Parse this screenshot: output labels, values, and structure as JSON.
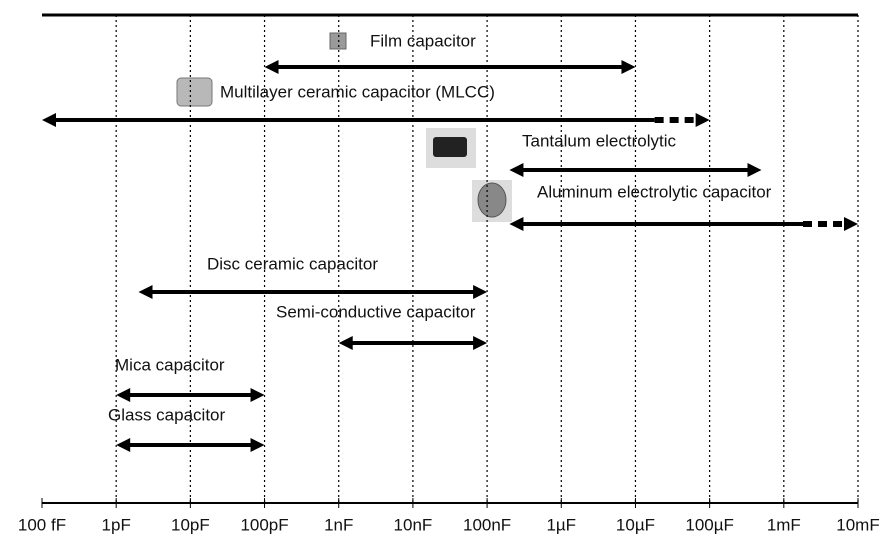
{
  "chart_data": {
    "type": "range",
    "log_x": true,
    "xlim": [
      1e-13,
      0.01
    ],
    "xticks": [
      {
        "value": 1e-13,
        "label": "100 fF"
      },
      {
        "value": 1e-12,
        "label": "1pF"
      },
      {
        "value": 1e-11,
        "label": "10pF"
      },
      {
        "value": 1e-10,
        "label": "100pF"
      },
      {
        "value": 1e-09,
        "label": "1nF"
      },
      {
        "value": 1e-08,
        "label": "10nF"
      },
      {
        "value": 1e-07,
        "label": "100nF"
      },
      {
        "value": 1e-06,
        "label": "1µF"
      },
      {
        "value": 1e-05,
        "label": "10µF"
      },
      {
        "value": 0.0001,
        "label": "100µF"
      },
      {
        "value": 0.001,
        "label": "1mF"
      },
      {
        "value": 0.01,
        "label": "10mF"
      }
    ],
    "grid": true,
    "color": "#000000",
    "series": [
      {
        "name": "Film capacitor",
        "values": [
          1e-10,
          1e-05
        ],
        "dashed_end": false
      },
      {
        "name": "Multilayer ceramic capacitor (MLCC)",
        "values": [
          1e-13,
          0.0001
        ],
        "dashed_end": true
      },
      {
        "name": "Tantalum electrolytic",
        "values": [
          2e-07,
          0.0005
        ],
        "dashed_end": false
      },
      {
        "name": "Aluminum electrolytic capacitor",
        "values": [
          2e-07,
          0.01
        ],
        "dashed_end": true
      },
      {
        "name": "Disc ceramic capacitor",
        "values": [
          2e-12,
          1e-07
        ],
        "dashed_end": false
      },
      {
        "name": "Semi-conductive capacitor",
        "values": [
          1e-09,
          1e-07
        ],
        "dashed_end": false
      },
      {
        "name": "Mica capacitor",
        "values": [
          1e-12,
          1e-10
        ],
        "dashed_end": false
      },
      {
        "name": "Glass capacitor",
        "values": [
          1e-12,
          1e-10
        ],
        "dashed_end": false
      }
    ]
  }
}
